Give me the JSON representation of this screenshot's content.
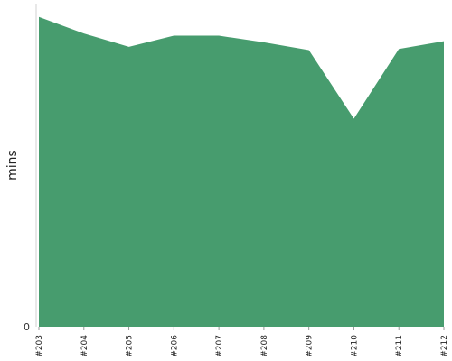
{
  "chart_data": {
    "type": "area",
    "categories": [
      "#203",
      "#204",
      "#205",
      "#206",
      "#207",
      "#208",
      "#209",
      "#210",
      "#211",
      "#212"
    ],
    "series": [
      {
        "values": [
          28.0,
          26.5,
          25.3,
          26.3,
          26.3,
          25.7,
          25.0,
          18.8,
          25.1,
          25.8
        ]
      }
    ],
    "xlabel": "",
    "ylabel": "mins",
    "yticks": [
      "0"
    ],
    "ylim": [
      0,
      29.2
    ],
    "color": "#479c6e",
    "grid": false,
    "legend": "none"
  }
}
